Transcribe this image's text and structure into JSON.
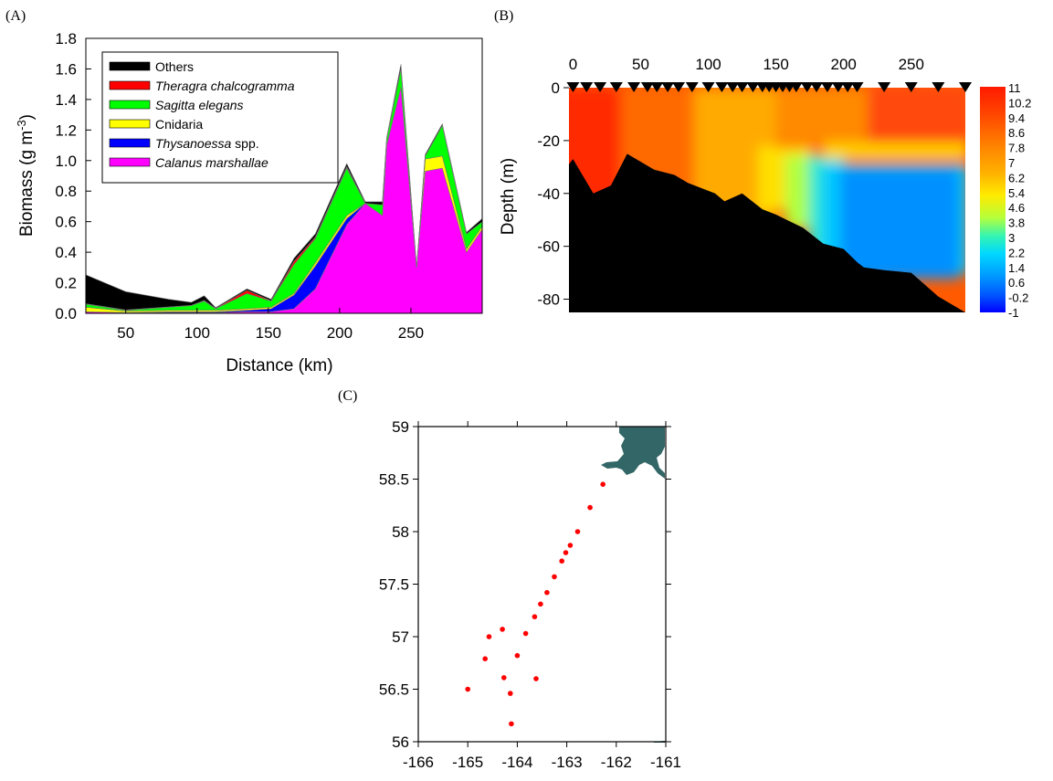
{
  "chart_data": [
    {
      "panel": "(A)",
      "type": "area",
      "xlabel": "Distance (km)",
      "ylabel": "Biomass (g m",
      "ylabel_sup": "-3",
      "ylabel_end": ")",
      "xlim": [
        22,
        300
      ],
      "ylim": [
        0,
        1.8
      ],
      "xticks": [
        50,
        100,
        150,
        200,
        250
      ],
      "yticks": [
        0.0,
        0.2,
        0.4,
        0.6,
        0.8,
        1.0,
        1.2,
        1.4,
        1.6,
        1.8
      ],
      "x": [
        22,
        50,
        80,
        96,
        105,
        113,
        135,
        152,
        168,
        183,
        205,
        218,
        230,
        233,
        243,
        254,
        260,
        272,
        289,
        300
      ],
      "legend_position": "top-left",
      "series": [
        {
          "name": "Calanus marshallae",
          "italic": true,
          "color": "#ff00ff",
          "values": [
            0.01,
            0.005,
            0.005,
            0.005,
            0.005,
            0.005,
            0.01,
            0.01,
            0.03,
            0.16,
            0.58,
            0.72,
            0.64,
            1.1,
            1.48,
            0.3,
            0.93,
            0.95,
            0.4,
            0.55
          ]
        },
        {
          "name": "Thysanoessa spp.",
          "italic_part": "Thysanoessa",
          "plain_part": " spp.",
          "color": "#0000ff",
          "values": [
            0.0,
            0.0,
            0.005,
            0.005,
            0.005,
            0.005,
            0.01,
            0.02,
            0.09,
            0.15,
            0.04,
            0.0,
            0.0,
            0.0,
            0.0,
            0.0,
            0.0,
            0.0,
            0.0,
            0.0
          ]
        },
        {
          "name": "Cnidaria",
          "italic": false,
          "color": "#ffff00",
          "values": [
            0.03,
            0.01,
            0.01,
            0.01,
            0.01,
            0.01,
            0.01,
            0.01,
            0.01,
            0.02,
            0.02,
            0.0,
            0.0,
            0.0,
            0.0,
            0.0,
            0.08,
            0.08,
            0.02,
            0.02
          ]
        },
        {
          "name": "Sagitta elegans",
          "italic": true,
          "color": "#00ff00",
          "values": [
            0.02,
            0.005,
            0.02,
            0.03,
            0.06,
            0.01,
            0.1,
            0.04,
            0.19,
            0.16,
            0.31,
            0.0,
            0.07,
            0.04,
            0.12,
            0.0,
            0.02,
            0.2,
            0.1,
            0.03
          ]
        },
        {
          "name": "Theragra chalcogramma",
          "italic": true,
          "color": "#ff0000",
          "values": [
            0.002,
            0.002,
            0.002,
            0.002,
            0.005,
            0.002,
            0.02,
            0.002,
            0.02,
            0.01,
            0.01,
            0.0,
            0.0,
            0.0,
            0.0,
            0.0,
            0.0,
            0.0,
            0.0,
            0.0
          ]
        },
        {
          "name": "Others",
          "italic": false,
          "color": "#000000",
          "values": [
            0.19,
            0.12,
            0.05,
            0.02,
            0.03,
            0.005,
            0.01,
            0.01,
            0.02,
            0.02,
            0.02,
            0.01,
            0.02,
            0.01,
            0.03,
            0.0,
            0.01,
            0.01,
            0.01,
            0.02
          ]
        }
      ]
    },
    {
      "panel": "(B)",
      "type": "heatmap",
      "ylabel": "Depth (m)",
      "xlim": [
        -3,
        290
      ],
      "ylim": [
        -85,
        0
      ],
      "xticks": [
        0,
        50,
        100,
        150,
        200,
        250
      ],
      "yticks": [
        0,
        -20,
        -40,
        -60,
        -80
      ],
      "station_x": [
        0,
        10,
        20,
        32,
        45,
        55,
        62,
        70,
        78,
        88,
        100,
        110,
        118,
        125,
        133,
        140,
        145,
        150,
        155,
        160,
        165,
        173,
        180,
        188,
        196,
        203,
        210,
        230,
        250,
        270,
        290
      ],
      "bottom_profile": {
        "x": [
          -3,
          0,
          15,
          28,
          40,
          60,
          75,
          85,
          95,
          105,
          112,
          125,
          140,
          150,
          158,
          170,
          185,
          200,
          210,
          215,
          230,
          250,
          270,
          290
        ],
        "depth": [
          -29,
          -27,
          -40,
          -37,
          -25,
          -31,
          -33,
          -36,
          -38,
          -40,
          -43,
          -40,
          -46,
          -48,
          -50,
          -53,
          -59,
          -61,
          -66,
          -68,
          -69,
          -70,
          -79,
          -85
        ]
      },
      "colorbar_levels": [
        "11",
        "10.2",
        "9.4",
        "8.6",
        "7.8",
        "7",
        "6.2",
        "5.4",
        "4.6",
        "3.8",
        "3",
        "2.2",
        "1.4",
        "0.6",
        "-0.2",
        "-1"
      ]
    },
    {
      "panel": "(C)",
      "type": "scatter",
      "xlim": [
        -166,
        -161
      ],
      "ylim": [
        56,
        59
      ],
      "xticks": [
        -166,
        -165,
        -164,
        -163,
        -162,
        -161
      ],
      "yticks": [
        56,
        56.5,
        57,
        57.5,
        58,
        58.5,
        59
      ],
      "ytick_labels": [
        "56",
        "56.5",
        "57",
        "57.5",
        "58",
        "58.5",
        "59"
      ],
      "point_color": "#ff0000",
      "land_color": "#336666",
      "points": [
        {
          "x": -165.0,
          "y": 56.5
        },
        {
          "x": -164.65,
          "y": 56.79
        },
        {
          "x": -164.57,
          "y": 57.0
        },
        {
          "x": -164.3,
          "y": 57.07
        },
        {
          "x": -164.27,
          "y": 56.61
        },
        {
          "x": -164.14,
          "y": 56.46
        },
        {
          "x": -164.12,
          "y": 56.17
        },
        {
          "x": -164.0,
          "y": 56.82
        },
        {
          "x": -163.83,
          "y": 57.03
        },
        {
          "x": -163.65,
          "y": 57.19
        },
        {
          "x": -163.62,
          "y": 56.6
        },
        {
          "x": -163.53,
          "y": 57.31
        },
        {
          "x": -163.4,
          "y": 57.42
        },
        {
          "x": -163.25,
          "y": 57.57
        },
        {
          "x": -163.1,
          "y": 57.72
        },
        {
          "x": -163.02,
          "y": 57.8
        },
        {
          "x": -162.93,
          "y": 57.87
        },
        {
          "x": -162.78,
          "y": 58.0
        },
        {
          "x": -162.53,
          "y": 58.23
        },
        {
          "x": -162.27,
          "y": 58.45
        }
      ]
    }
  ]
}
